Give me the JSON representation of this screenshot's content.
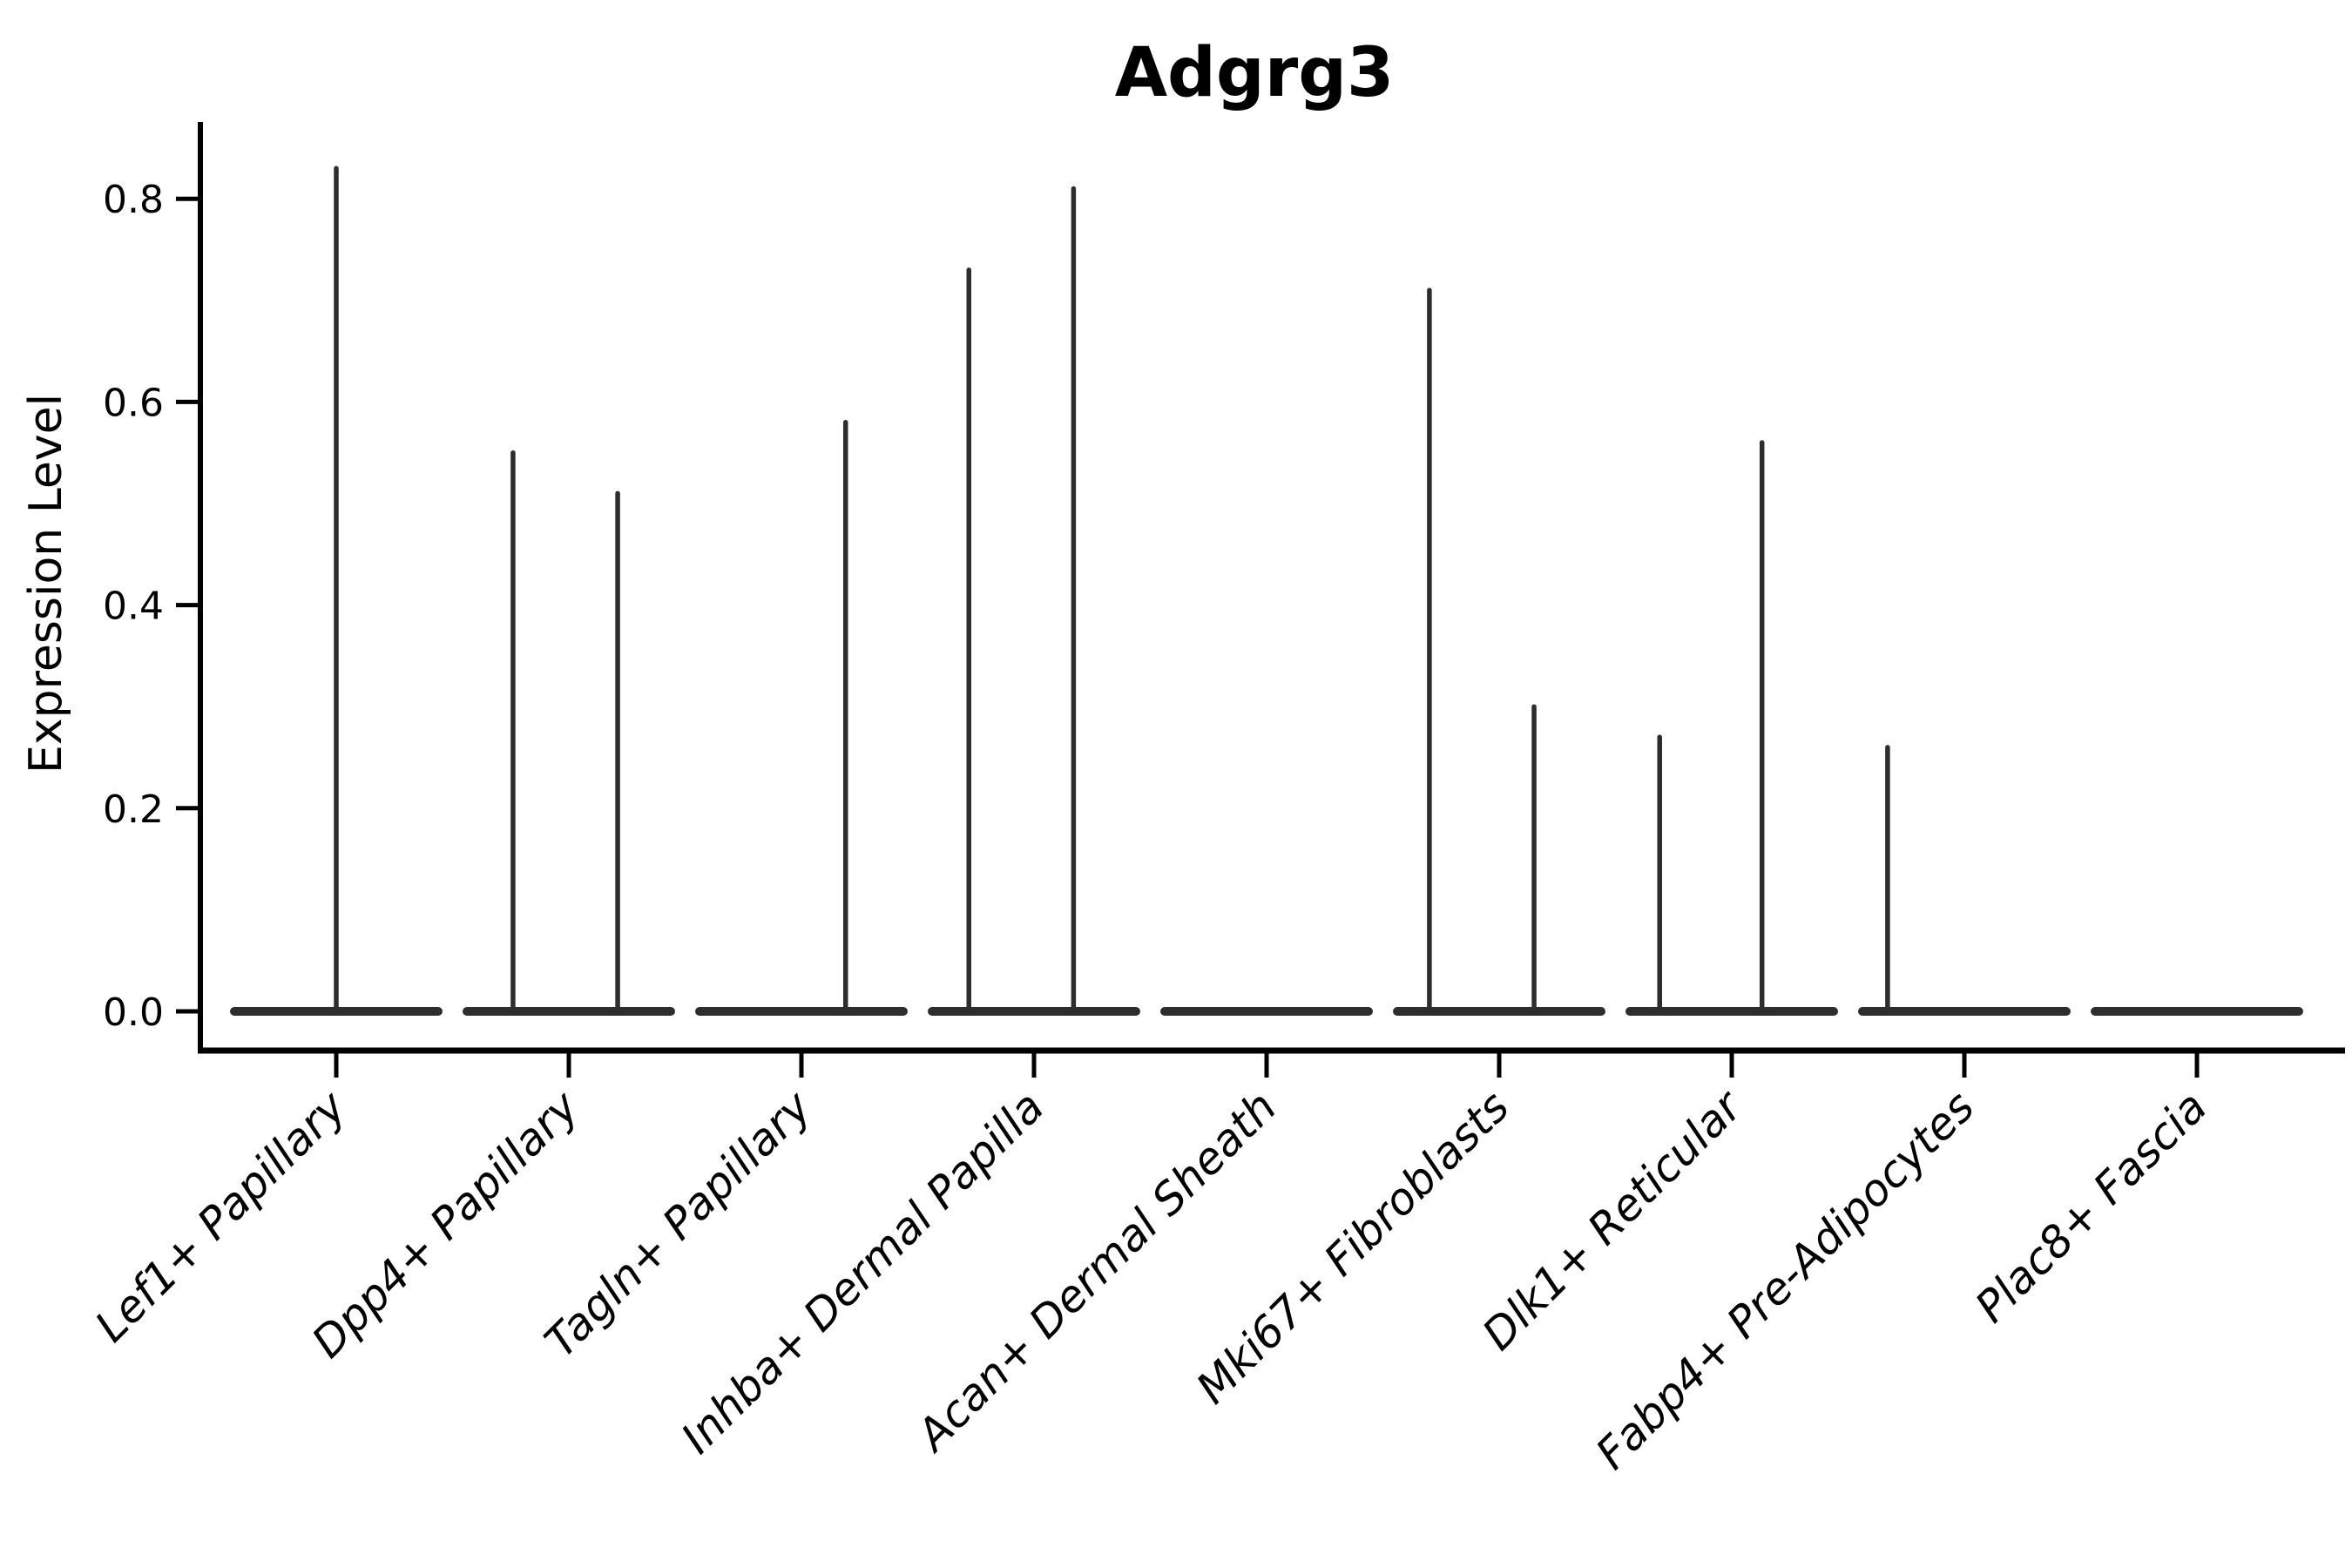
{
  "title": "Adgrg3",
  "ylabel": "Expression Level",
  "style": {
    "violin_color": "#2d2d2d",
    "axis_color": "#000000",
    "background": "#ffffff"
  },
  "chart_data": {
    "type": "violin",
    "title": "Adgrg3",
    "xlabel": "",
    "ylabel": "Expression Level",
    "ylim": [
      -0.04,
      0.88
    ],
    "yticks": [
      "0.0",
      "0.2",
      "0.4",
      "0.6",
      "0.8"
    ],
    "ytick_values": [
      0.0,
      0.2,
      0.4,
      0.6,
      0.8
    ],
    "grid": false,
    "legend_position": "none",
    "categories": [
      "Lef1+ Papillary",
      "Dpp4+ Papillary",
      "Tagln+ Papillary",
      "Inhba+ Dermal Papilla",
      "Acan+ Dermal Sheath",
      "Mki67+ Fibroblasts",
      "Dlk1+ Reticular",
      "Fabp4+ Pre-Adipocytes",
      "Plac8+ Fascia"
    ],
    "violins": [
      {
        "category": "Lef1+ Papillary",
        "base_at_zero": true,
        "spikes": [
          {
            "offset_frac": 0.0,
            "max_expression": 0.83
          }
        ]
      },
      {
        "category": "Dpp4+ Papillary",
        "base_at_zero": true,
        "spikes": [
          {
            "offset_frac": -0.24,
            "max_expression": 0.55
          },
          {
            "offset_frac": 0.21,
            "max_expression": 0.51
          }
        ]
      },
      {
        "category": "Tagln+ Papillary",
        "base_at_zero": true,
        "spikes": [
          {
            "offset_frac": 0.19,
            "max_expression": 0.58
          }
        ]
      },
      {
        "category": "Inhba+ Dermal Papilla",
        "base_at_zero": true,
        "spikes": [
          {
            "offset_frac": -0.28,
            "max_expression": 0.73
          },
          {
            "offset_frac": 0.17,
            "max_expression": 0.81
          }
        ]
      },
      {
        "category": "Acan+ Dermal Sheath",
        "base_at_zero": true,
        "spikes": []
      },
      {
        "category": "Mki67+ Fibroblasts",
        "base_at_zero": true,
        "spikes": [
          {
            "offset_frac": -0.3,
            "max_expression": 0.71
          },
          {
            "offset_frac": 0.15,
            "max_expression": 0.3
          }
        ]
      },
      {
        "category": "Dlk1+ Reticular",
        "base_at_zero": true,
        "spikes": [
          {
            "offset_frac": -0.31,
            "max_expression": 0.27
          },
          {
            "offset_frac": 0.13,
            "max_expression": 0.56
          }
        ]
      },
      {
        "category": "Fabp4+ Pre-Adipocytes",
        "base_at_zero": true,
        "spikes": [
          {
            "offset_frac": -0.33,
            "max_expression": 0.26
          }
        ]
      },
      {
        "category": "Plac8+ Fascia",
        "base_at_zero": true,
        "spikes": []
      }
    ]
  }
}
